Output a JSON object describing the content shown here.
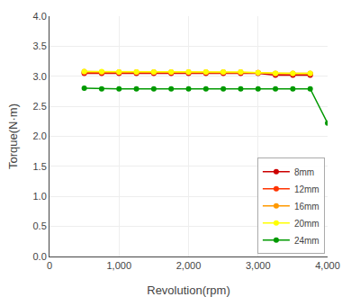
{
  "chart_data": {
    "type": "line",
    "x_label": "Revolution(rpm)",
    "y_label": "Torque(N·m)",
    "x": [
      500,
      750,
      1000,
      1250,
      1500,
      1750,
      2000,
      2250,
      2500,
      2750,
      3000,
      3250,
      3500,
      3750,
      4000
    ],
    "series": [
      {
        "name": "8mm",
        "color": "#cc0000",
        "values": [
          3.05,
          3.05,
          3.05,
          3.05,
          3.05,
          3.05,
          3.05,
          3.05,
          3.05,
          3.05,
          3.05,
          3.02,
          3.02,
          3.02,
          null
        ]
      },
      {
        "name": "12mm",
        "color": "#ff3300",
        "values": [
          3.06,
          3.06,
          3.06,
          3.06,
          3.06,
          3.06,
          3.06,
          3.06,
          3.06,
          3.06,
          3.06,
          3.04,
          3.04,
          3.04,
          null
        ]
      },
      {
        "name": "16mm",
        "color": "#ff9900",
        "values": [
          3.08,
          3.07,
          3.07,
          3.07,
          3.07,
          3.07,
          3.07,
          3.07,
          3.07,
          3.07,
          3.06,
          3.05,
          3.05,
          3.05,
          null
        ]
      },
      {
        "name": "20mm",
        "color": "#ffff00",
        "values": [
          3.08,
          3.08,
          3.07,
          3.07,
          3.07,
          3.07,
          3.07,
          3.07,
          3.07,
          3.07,
          3.06,
          3.05,
          3.05,
          3.05,
          null
        ]
      },
      {
        "name": "24mm",
        "color": "#009900",
        "values": [
          2.8,
          2.79,
          2.79,
          2.79,
          2.79,
          2.79,
          2.79,
          2.79,
          2.79,
          2.79,
          2.79,
          2.79,
          2.79,
          2.79,
          2.22
        ]
      }
    ],
    "xlim": [
      0,
      4000
    ],
    "ylim": [
      0.0,
      4.0
    ],
    "xticks": [
      0,
      {
        "value": 1000,
        "label": "1,000"
      },
      {
        "value": 2000,
        "label": "2,000"
      },
      {
        "value": 3000,
        "label": "3,000"
      },
      {
        "value": 4000,
        "label": "4,000"
      }
    ],
    "yticks": [
      {
        "value": 0,
        "label": "0.0"
      },
      0.5,
      {
        "value": 1,
        "label": "1.0"
      },
      1.5,
      {
        "value": 2,
        "label": "2.0"
      },
      2.5,
      {
        "value": 3,
        "label": "3.0"
      },
      3.5,
      {
        "value": 4,
        "label": "4.0"
      }
    ],
    "grid": true,
    "legend": "lower right",
    "marker": "circle"
  }
}
